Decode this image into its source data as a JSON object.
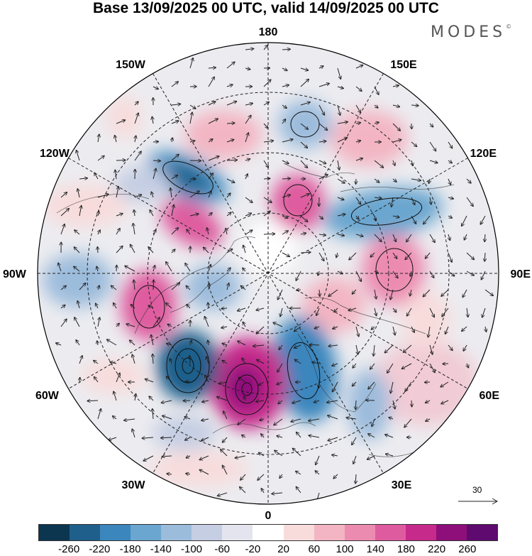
{
  "title": "Base 13/09/2025 00 UTC, valid 14/09/2025 00 UTC",
  "brand": "MODES",
  "brand_mark": "©",
  "longitude_labels": {
    "top": "180",
    "top_left": "150W",
    "top_right": "150E",
    "upper_left": "120W",
    "upper_right": "120E",
    "left": "90W",
    "right": "90E",
    "lower_left": "60W",
    "lower_right": "60E",
    "bottom_left": "30W",
    "bottom_right": "30E",
    "bottom": "0"
  },
  "vector_scale_label": "30",
  "colorbar": {
    "colors": [
      "#0c3550",
      "#1f5f8b",
      "#3a86bd",
      "#6aa6cf",
      "#9cbcdc",
      "#c5cee3",
      "#e4e4ef",
      "#ffffff",
      "#f8dcdc",
      "#f3b5c3",
      "#ec8bb0",
      "#de5b9f",
      "#c62a8b",
      "#8e0f7a",
      "#5e0a6e"
    ],
    "labels": [
      "-260",
      "-220",
      "-180",
      "-140",
      "-100",
      "-60",
      "-20",
      "20",
      "60",
      "100",
      "140",
      "180",
      "220",
      "260"
    ]
  }
}
